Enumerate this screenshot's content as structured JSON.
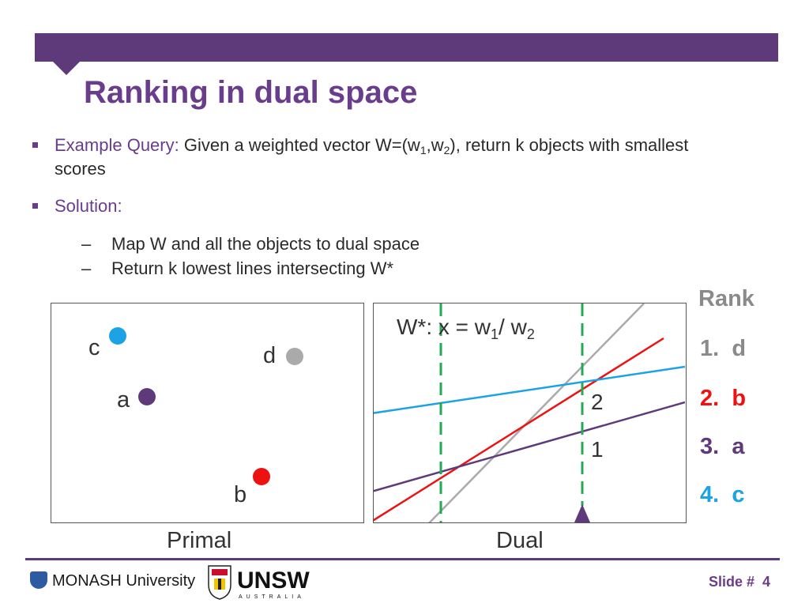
{
  "title": "Ranking in dual space",
  "bullets": {
    "query_label": "Example Query:",
    "query_text": "Given a weighted vector W=(w",
    "query_sub1": "1",
    "query_comma": ",w",
    "query_sub2": "2",
    "query_rest": "), return k objects with smallest",
    "query_cont": "scores",
    "solution_label": "Solution:",
    "steps": [
      "Map W and all the objects to dual space",
      "Return k lowest lines intersecting W*"
    ]
  },
  "primal": {
    "caption": "Primal",
    "points": [
      {
        "label": "c",
        "color": "#1ba3e6"
      },
      {
        "label": "d",
        "color": "#aaaaaa"
      },
      {
        "label": "a",
        "color": "#5f3a7a"
      },
      {
        "label": "b",
        "color": "#ee1111"
      }
    ]
  },
  "dual": {
    "caption": "Dual",
    "query_line_label": "W*: x = w",
    "query_line_sub1": "1",
    "query_line_slash": "/ w",
    "query_line_sub2": "2",
    "intersection_labels": [
      "2",
      "1"
    ],
    "line_colors": {
      "c": "#1ba3e6",
      "d": "#aaaaaa",
      "a": "#5f3a7a",
      "b": "#ee1111",
      "query": "#22aa55"
    }
  },
  "rank": {
    "title": "Rank",
    "items": [
      {
        "num": "1.",
        "label": "d",
        "color": "#8a8a8a"
      },
      {
        "num": "2.",
        "label": "b",
        "color": "#ee1111"
      },
      {
        "num": "3.",
        "label": "a",
        "color": "#5f3a7a"
      },
      {
        "num": "4.",
        "label": "c",
        "color": "#1ba3e6"
      }
    ]
  },
  "footer": {
    "monash": "MONASH University",
    "unsw": "UNSW",
    "unsw_sub": "AUSTRALIA",
    "slide_label": "Slide #",
    "slide_number": "4"
  }
}
